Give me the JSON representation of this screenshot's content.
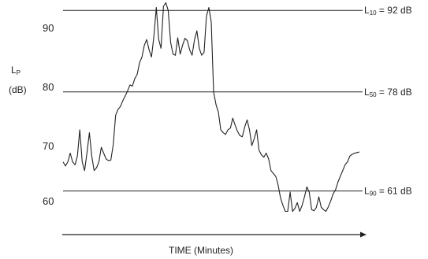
{
  "chart_data": {
    "type": "line",
    "title": "",
    "xlabel": "TIME (Minutes)",
    "ylabel": {
      "main": "L",
      "sub": "P",
      "unit": "(dB)"
    },
    "ylim": [
      54,
      94
    ],
    "yticks": [
      "60",
      "70",
      "80",
      "90"
    ],
    "grid": false,
    "reference_lines": [
      {
        "value": 92,
        "label_main": "L",
        "label_sub": "10",
        "label_rest": " = 92 dB"
      },
      {
        "value": 78,
        "label_main": "L",
        "label_sub": "50",
        "label_rest": " = 78 dB"
      },
      {
        "value": 61,
        "label_main": "L",
        "label_sub": "90",
        "label_rest": " = 61 dB"
      }
    ],
    "series": [
      {
        "x": [
          0,
          1,
          2,
          3,
          4,
          5,
          6,
          7,
          8,
          9,
          10,
          11,
          12,
          13,
          14,
          15,
          16,
          17,
          18,
          19,
          20,
          21,
          22,
          23,
          24,
          25,
          26,
          27,
          28,
          29,
          30,
          31,
          32,
          33,
          34,
          35,
          36,
          37,
          38,
          39,
          40,
          41,
          42,
          43,
          44,
          45,
          46,
          47,
          48,
          49,
          50,
          51,
          52,
          53,
          54,
          55,
          56,
          57,
          58,
          59,
          60,
          61,
          62,
          63,
          64,
          65,
          66,
          67,
          68,
          69,
          70,
          71,
          72,
          73,
          74,
          75,
          76,
          77,
          78,
          79,
          80,
          81,
          82,
          83,
          84,
          85,
          86,
          87,
          88,
          89,
          90,
          91,
          92,
          93,
          94,
          95,
          96,
          97,
          98,
          99,
          100,
          101,
          102,
          103,
          104,
          105,
          106,
          107,
          108,
          109,
          110,
          111,
          112,
          113,
          114,
          115,
          116,
          117,
          118,
          119,
          120,
          121,
          122,
          123,
          124
        ],
        "values": [
          66,
          65.3,
          66,
          67.5,
          66,
          65.5,
          67,
          71.5,
          66,
          64.5,
          67.5,
          71,
          67,
          64.5,
          65,
          66,
          68.5,
          67.5,
          66.5,
          66.2,
          66.3,
          69,
          74,
          75,
          75.5,
          76.5,
          77.3,
          78.2,
          79.2,
          79,
          80.3,
          81,
          83,
          84,
          86,
          87,
          85.2,
          84,
          87.5,
          92.5,
          87,
          85.5,
          92.7,
          93.3,
          92,
          86.5,
          84.5,
          84.3,
          87.3,
          84.5,
          86,
          87.2,
          86.8,
          85.2,
          84.3,
          87,
          88.5,
          85.5,
          84.3,
          84.8,
          91,
          92.5,
          90,
          78,
          75.8,
          74.5,
          71.5,
          71,
          70.7,
          71.5,
          71.8,
          73.5,
          72.3,
          71.2,
          70.5,
          70.3,
          72,
          73.2,
          71.5,
          68.8,
          70,
          71.5,
          68,
          67.2,
          66.8,
          67.5,
          66.5,
          64.5,
          64,
          63.5,
          62,
          59.8,
          58.5,
          57.5,
          57.5,
          60.8,
          57.5,
          58,
          59,
          57.5,
          58.5,
          60,
          61.7,
          60.8,
          57.8,
          57.6,
          58.2,
          60,
          58.2,
          57.8,
          57.5,
          58.3,
          59.3,
          60.5,
          61.2,
          62.5,
          63.5,
          64.5,
          65.5,
          66,
          67,
          67.3,
          67.5,
          67.6,
          67.7
        ]
      }
    ]
  }
}
